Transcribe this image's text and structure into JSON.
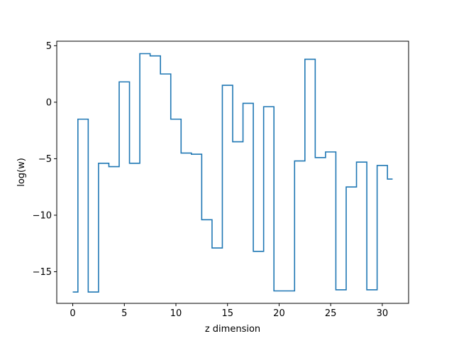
{
  "chart_data": {
    "type": "line",
    "drawstyle": "steps-mid",
    "title": "",
    "xlabel": "z dimension",
    "ylabel": "log(w)",
    "xlim": [
      -1.55,
      32.55
    ],
    "ylim": [
      -17.8,
      5.4
    ],
    "xticks": [
      0,
      5,
      10,
      15,
      20,
      25,
      30
    ],
    "yticks": [
      5,
      0,
      -5,
      -10,
      -15
    ],
    "ytick_labels": [
      "5",
      "0",
      "−5",
      "−10",
      "−15"
    ],
    "grid": false,
    "legend": "none",
    "series": [
      {
        "color": "#1f77b4",
        "x": [
          0,
          1,
          2,
          3,
          4,
          5,
          6,
          7,
          8,
          9,
          10,
          11,
          12,
          13,
          14,
          15,
          16,
          17,
          18,
          19,
          20,
          21,
          22,
          23,
          24,
          25,
          26,
          27,
          28,
          29,
          30,
          31
        ],
        "y": [
          -16.8,
          -1.5,
          -16.8,
          -5.4,
          -5.7,
          1.8,
          -5.4,
          4.3,
          4.1,
          2.5,
          -1.5,
          -4.5,
          -4.6,
          -10.4,
          -12.9,
          1.5,
          -3.5,
          -0.1,
          -13.2,
          -0.4,
          -16.7,
          -16.7,
          -5.2,
          3.8,
          -4.9,
          -4.4,
          -16.6,
          -7.5,
          -5.3,
          -16.6,
          -5.6,
          -6.8
        ]
      }
    ]
  }
}
